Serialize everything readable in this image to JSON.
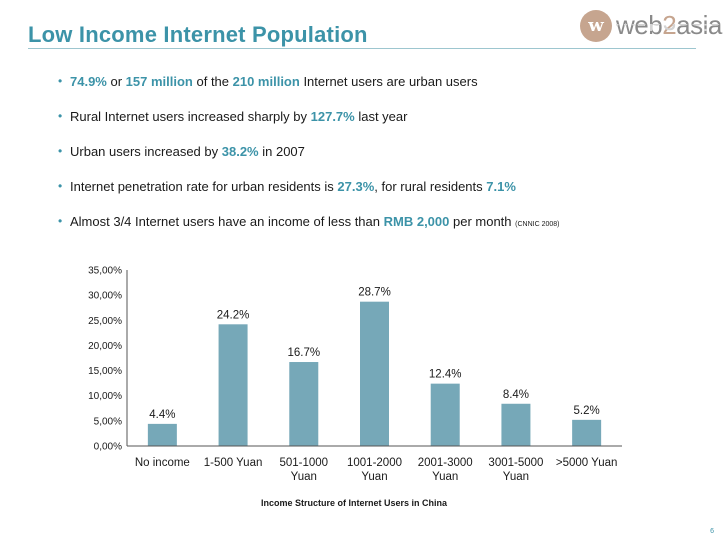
{
  "slide": {
    "title": "Low Income Internet Population",
    "page_number": "6"
  },
  "logo": {
    "text_a": "web",
    "text_b": "2",
    "text_c": "asia",
    "mark": "w"
  },
  "bullets": [
    {
      "p1": "74.9%",
      "p2": " or ",
      "p3": "157 million",
      "p4": " of the ",
      "p5": "210 million",
      "p6": " Internet users are urban users"
    },
    {
      "p1": "Rural Internet users  increased sharply by ",
      "p2": "127.7%",
      "p3": " last year"
    },
    {
      "p1": "Urban users increased by ",
      "p2": "38.2%",
      "p3": " in 2007"
    },
    {
      "p1": "Internet penetration rate for urban residents is ",
      "p2": "27.3%",
      "p3": ", for rural residents ",
      "p4": "7.1%"
    },
    {
      "p1": "Almost 3/4 Internet users have an income of less than ",
      "p2": "RMB 2,000",
      "p3": " per month ",
      "p4": "(CNNIC 2008)"
    }
  ],
  "colors": {
    "accent": "#3c93a8",
    "bar": "#76a8b8"
  },
  "chart_data": {
    "type": "bar",
    "title": "Income Structure of Internet Users in China",
    "categories": [
      [
        "No income"
      ],
      [
        "1-500 Yuan"
      ],
      [
        "501-1000",
        "Yuan"
      ],
      [
        "1001-2000",
        "Yuan"
      ],
      [
        "2001-3000",
        "Yuan"
      ],
      [
        "3001-5000",
        "Yuan"
      ],
      [
        ">5000 Yuan"
      ]
    ],
    "values": [
      4.4,
      24.2,
      16.7,
      28.7,
      12.4,
      8.4,
      5.2
    ],
    "data_labels": [
      "4.4%",
      "24.2%",
      "16.7%",
      "28.7%",
      "12.4%",
      "8.4%",
      "5.2%"
    ],
    "yticks": [
      "0,00%",
      "5,00%",
      "10,00%",
      "15,00%",
      "20,00%",
      "25,00%",
      "30,00%",
      "35,00%"
    ],
    "ylim": [
      0,
      35
    ],
    "xlabel": "",
    "ylabel": "",
    "grid": false,
    "legend": "none"
  }
}
